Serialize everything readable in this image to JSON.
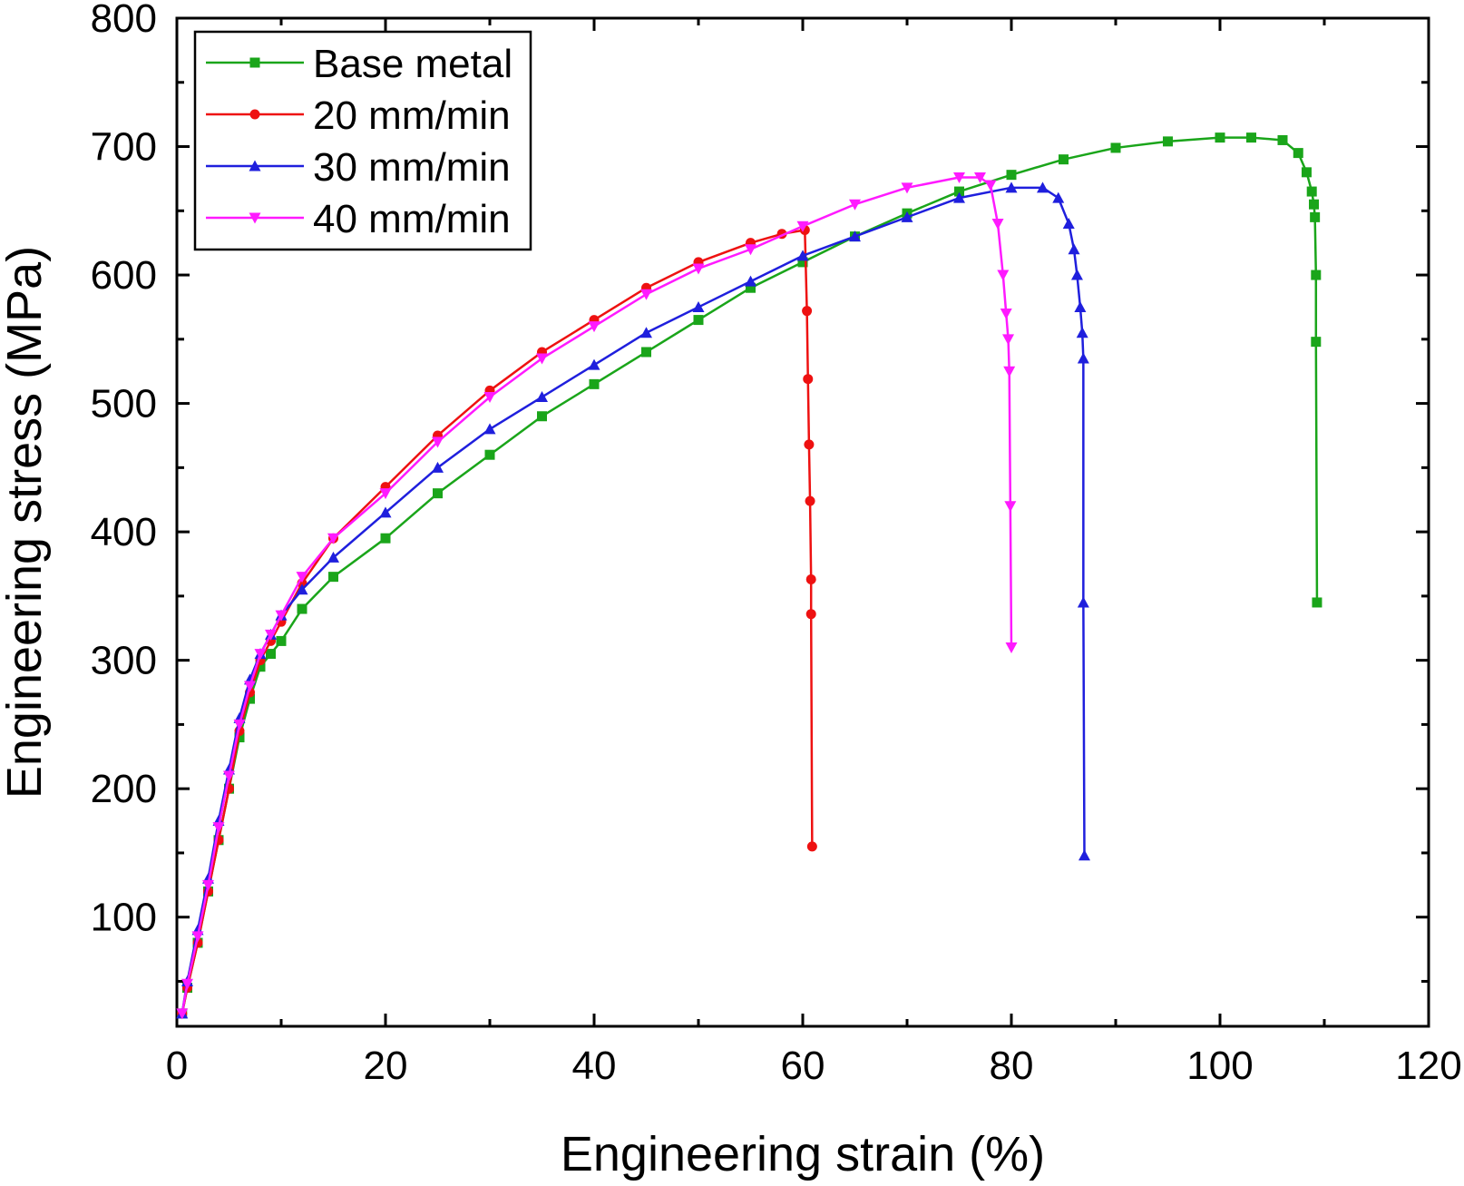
{
  "chart_data": {
    "type": "line",
    "title": "",
    "xlabel": "Engineering strain (%)",
    "ylabel": "Engineering stress (MPa)",
    "xlim": [
      0,
      120
    ],
    "ylim": [
      15,
      800
    ],
    "xticks": [
      0,
      20,
      40,
      60,
      80,
      100,
      120
    ],
    "yticks": [
      100,
      200,
      300,
      400,
      500,
      600,
      700,
      800
    ],
    "grid": false,
    "legend": {
      "position": "top-left"
    },
    "series": [
      {
        "name": "Base metal",
        "color": "#1aa51a",
        "marker": "square",
        "x": [
          0.5,
          1,
          2,
          3,
          4,
          5,
          6,
          7,
          8,
          9,
          10,
          12,
          15,
          20,
          25,
          30,
          35,
          40,
          45,
          50,
          55,
          60,
          65,
          70,
          75,
          80,
          85,
          90,
          95,
          100,
          103,
          106,
          107.5,
          108.3,
          108.8,
          109.0,
          109.1,
          109.2,
          109.2,
          109.3
        ],
        "y": [
          25,
          45,
          80,
          120,
          160,
          200,
          240,
          270,
          295,
          305,
          315,
          340,
          365,
          395,
          430,
          460,
          490,
          515,
          540,
          565,
          590,
          610,
          630,
          648,
          665,
          678,
          690,
          699,
          704,
          707,
          707,
          705,
          695,
          680,
          665,
          655,
          645,
          600,
          548,
          345
        ]
      },
      {
        "name": "20 mm/min",
        "color": "#ee1111",
        "marker": "circle",
        "x": [
          0.5,
          1,
          2,
          3,
          4,
          5,
          6,
          7,
          8,
          9,
          10,
          12,
          15,
          20,
          25,
          30,
          35,
          40,
          45,
          50,
          55,
          58,
          60.2,
          60.4,
          60.5,
          60.6,
          60.7,
          60.8,
          60.8,
          60.9
        ],
        "y": [
          25,
          45,
          80,
          120,
          160,
          200,
          245,
          275,
          300,
          315,
          330,
          360,
          395,
          435,
          475,
          510,
          540,
          565,
          590,
          610,
          625,
          632,
          635,
          572,
          519,
          468,
          424,
          363,
          336,
          155
        ]
      },
      {
        "name": "30 mm/min",
        "color": "#1f1fdd",
        "marker": "triangle-up",
        "x": [
          0.5,
          1,
          2,
          3,
          4,
          5,
          6,
          7,
          8,
          9,
          10,
          12,
          15,
          20,
          25,
          30,
          35,
          40,
          45,
          50,
          55,
          60,
          65,
          70,
          75,
          80,
          83,
          84.5,
          85.5,
          86.0,
          86.3,
          86.6,
          86.8,
          86.9,
          86.9,
          87.0
        ],
        "y": [
          25,
          50,
          90,
          130,
          175,
          215,
          255,
          285,
          305,
          320,
          335,
          355,
          380,
          415,
          450,
          480,
          505,
          530,
          555,
          575,
          595,
          615,
          630,
          645,
          660,
          668,
          668,
          660,
          640,
          620,
          600,
          575,
          555,
          535,
          345,
          148
        ]
      },
      {
        "name": "40 mm/min",
        "color": "#ff1aff",
        "marker": "triangle-down",
        "x": [
          0.5,
          1,
          2,
          3,
          4,
          5,
          6,
          7,
          8,
          9,
          10,
          12,
          15,
          20,
          25,
          30,
          35,
          40,
          45,
          50,
          55,
          60,
          65,
          70,
          75,
          77,
          78,
          78.7,
          79.2,
          79.5,
          79.7,
          79.8,
          79.9,
          80.0
        ],
        "y": [
          25,
          48,
          85,
          125,
          170,
          210,
          250,
          280,
          305,
          320,
          335,
          365,
          395,
          430,
          470,
          505,
          535,
          560,
          585,
          605,
          620,
          638,
          655,
          668,
          676,
          676,
          670,
          640,
          600,
          570,
          550,
          525,
          420,
          310
        ]
      }
    ]
  }
}
